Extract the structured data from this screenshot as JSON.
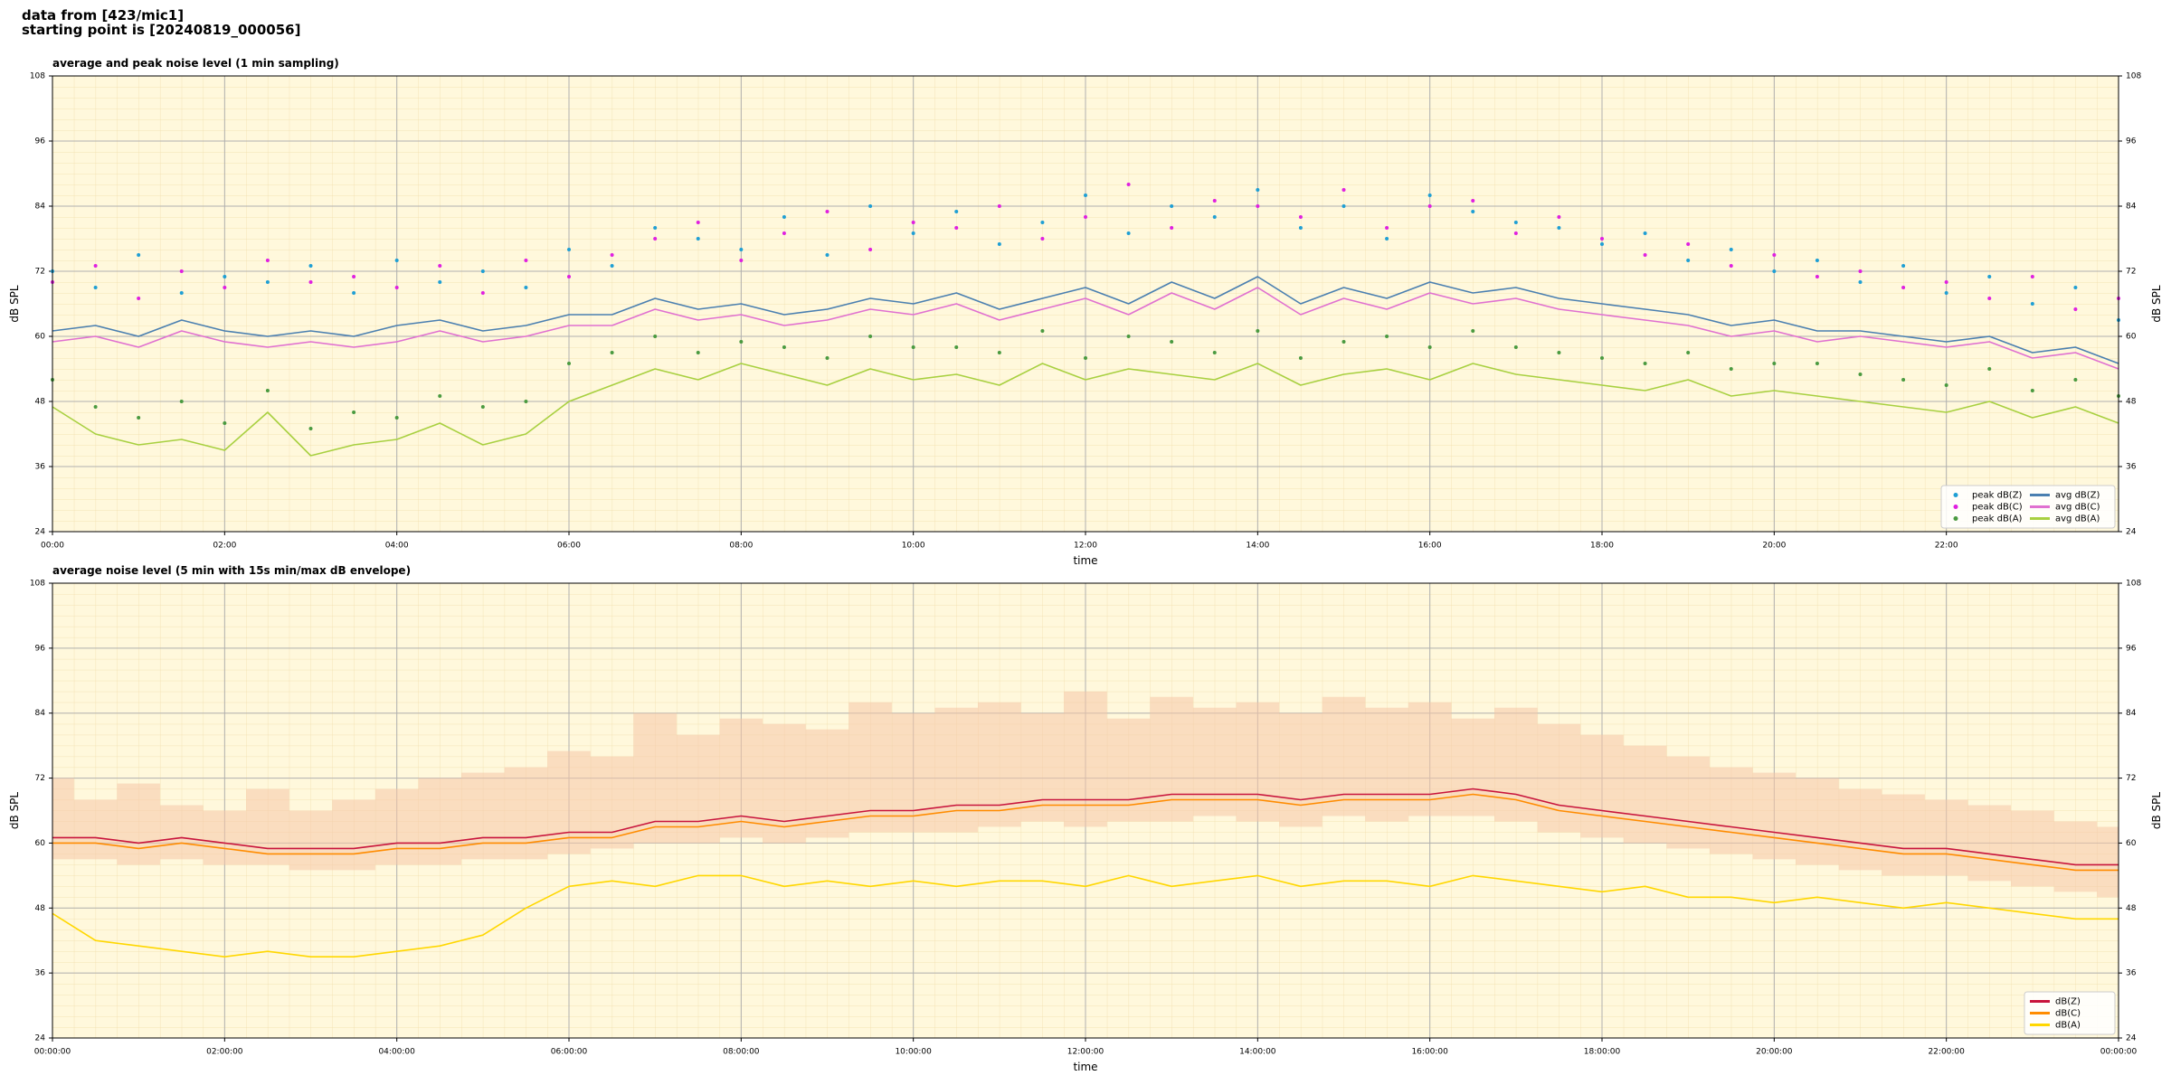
{
  "header": [
    "data from [423/mic1]",
    "starting point is [20240819_000056]"
  ],
  "chart_data": [
    {
      "type": "line",
      "title": "average and peak noise level (1 min sampling)",
      "x_label": "time",
      "y_label": "dB SPL",
      "background": "#fff8dc",
      "grid": true,
      "minor_grid": {
        "x": 0.25,
        "y": 2
      },
      "legend": "lower right",
      "legend_columns": 2,
      "xlim": [
        0,
        24
      ],
      "ylim": [
        24,
        108
      ],
      "xticks": [
        {
          "value": 0,
          "label": "00:00"
        },
        {
          "value": 2,
          "label": "02:00"
        },
        {
          "value": 4,
          "label": "04:00"
        },
        {
          "value": 6,
          "label": "06:00"
        },
        {
          "value": 8,
          "label": "08:00"
        },
        {
          "value": 10,
          "label": "10:00"
        },
        {
          "value": 12,
          "label": "12:00"
        },
        {
          "value": 14,
          "label": "14:00"
        },
        {
          "value": 16,
          "label": "16:00"
        },
        {
          "value": 18,
          "label": "18:00"
        },
        {
          "value": 20,
          "label": "20:00"
        },
        {
          "value": 22,
          "label": "22:00"
        }
      ],
      "yticks": [
        24,
        36,
        48,
        60,
        72,
        84,
        96,
        108
      ],
      "x": [
        0,
        0.5,
        1,
        1.5,
        2,
        2.5,
        3,
        3.5,
        4,
        4.5,
        5,
        5.5,
        6,
        6.5,
        7,
        7.5,
        8,
        8.5,
        9,
        9.5,
        10,
        10.5,
        11,
        11.5,
        12,
        12.5,
        13,
        13.5,
        14,
        14.5,
        15,
        15.5,
        16,
        16.5,
        17,
        17.5,
        18,
        18.5,
        19,
        19.5,
        20,
        20.5,
        21,
        21.5,
        22,
        22.5,
        23,
        23.5,
        24
      ],
      "series": [
        {
          "name": "peak dB(Z)",
          "type": "scatter",
          "color": "#1f9fd4",
          "values": [
            72,
            69,
            75,
            68,
            71,
            70,
            73,
            68,
            74,
            70,
            72,
            69,
            76,
            73,
            80,
            78,
            76,
            82,
            75,
            84,
            79,
            83,
            77,
            81,
            86,
            79,
            84,
            82,
            87,
            80,
            84,
            78,
            86,
            83,
            81,
            80,
            77,
            79,
            74,
            76,
            72,
            74,
            70,
            73,
            68,
            71,
            66,
            69,
            63
          ]
        },
        {
          "name": "peak dB(C)",
          "type": "scatter",
          "color": "#e020e0",
          "values": [
            70,
            73,
            67,
            72,
            69,
            74,
            70,
            71,
            69,
            73,
            68,
            74,
            71,
            75,
            78,
            81,
            74,
            79,
            83,
            76,
            81,
            80,
            84,
            78,
            82,
            88,
            80,
            85,
            84,
            82,
            87,
            80,
            84,
            85,
            79,
            82,
            78,
            75,
            77,
            73,
            75,
            71,
            72,
            69,
            70,
            67,
            71,
            65,
            67
          ]
        },
        {
          "name": "peak dB(A)",
          "type": "scatter",
          "color": "#4a9a40",
          "values": [
            52,
            47,
            45,
            48,
            44,
            50,
            43,
            46,
            45,
            49,
            47,
            48,
            55,
            57,
            60,
            57,
            59,
            58,
            56,
            60,
            58,
            58,
            57,
            61,
            56,
            60,
            59,
            57,
            61,
            56,
            59,
            60,
            58,
            61,
            58,
            57,
            56,
            55,
            57,
            54,
            55,
            55,
            53,
            52,
            51,
            54,
            50,
            52,
            49
          ]
        },
        {
          "name": "avg dB(Z)",
          "type": "line",
          "color": "#4a7fb0",
          "values": [
            61,
            62,
            60,
            63,
            61,
            60,
            61,
            60,
            62,
            63,
            61,
            62,
            64,
            64,
            67,
            65,
            66,
            64,
            65,
            67,
            66,
            68,
            65,
            67,
            69,
            66,
            70,
            67,
            71,
            66,
            69,
            67,
            70,
            68,
            69,
            67,
            66,
            65,
            64,
            62,
            63,
            61,
            61,
            60,
            59,
            60,
            57,
            58,
            55
          ]
        },
        {
          "name": "avg dB(C)",
          "type": "line",
          "color": "#e070d0",
          "values": [
            59,
            60,
            58,
            61,
            59,
            58,
            59,
            58,
            59,
            61,
            59,
            60,
            62,
            62,
            65,
            63,
            64,
            62,
            63,
            65,
            64,
            66,
            63,
            65,
            67,
            64,
            68,
            65,
            69,
            64,
            67,
            65,
            68,
            66,
            67,
            65,
            64,
            63,
            62,
            60,
            61,
            59,
            60,
            59,
            58,
            59,
            56,
            57,
            54
          ]
        },
        {
          "name": "avg dB(A)",
          "type": "line",
          "color": "#a8d040",
          "values": [
            47,
            42,
            40,
            41,
            39,
            46,
            38,
            40,
            41,
            44,
            40,
            42,
            48,
            51,
            54,
            52,
            55,
            53,
            51,
            54,
            52,
            53,
            51,
            55,
            52,
            54,
            53,
            52,
            55,
            51,
            53,
            54,
            52,
            55,
            53,
            52,
            51,
            50,
            52,
            49,
            50,
            49,
            48,
            47,
            46,
            48,
            45,
            47,
            44
          ]
        }
      ]
    },
    {
      "type": "line",
      "title": "average noise level (5 min with 15s min/max dB envelope)",
      "x_label": "time",
      "y_label": "dB SPL",
      "background": "#fff8dc",
      "grid": true,
      "minor_grid": {
        "x": 0.25,
        "y": 2
      },
      "legend": "lower right",
      "legend_columns": 1,
      "xlim": [
        0,
        24
      ],
      "ylim": [
        24,
        108
      ],
      "xticks": [
        {
          "value": 0,
          "label": "00:00:00"
        },
        {
          "value": 2,
          "label": "02:00:00"
        },
        {
          "value": 4,
          "label": "04:00:00"
        },
        {
          "value": 6,
          "label": "06:00:00"
        },
        {
          "value": 8,
          "label": "08:00:00"
        },
        {
          "value": 10,
          "label": "10:00:00"
        },
        {
          "value": 12,
          "label": "12:00:00"
        },
        {
          "value": 14,
          "label": "14:00:00"
        },
        {
          "value": 16,
          "label": "16:00:00"
        },
        {
          "value": 18,
          "label": "18:00:00"
        },
        {
          "value": 20,
          "label": "20:00:00"
        },
        {
          "value": 22,
          "label": "22:00:00"
        },
        {
          "value": 24,
          "label": "00:00:00"
        }
      ],
      "yticks": [
        24,
        36,
        48,
        60,
        72,
        84,
        96,
        108
      ],
      "x": [
        0,
        0.5,
        1,
        1.5,
        2,
        2.5,
        3,
        3.5,
        4,
        4.5,
        5,
        5.5,
        6,
        6.5,
        7,
        7.5,
        8,
        8.5,
        9,
        9.5,
        10,
        10.5,
        11,
        11.5,
        12,
        12.5,
        13,
        13.5,
        14,
        14.5,
        15,
        15.5,
        16,
        16.5,
        17,
        17.5,
        18,
        18.5,
        19,
        19.5,
        20,
        20.5,
        21,
        21.5,
        22,
        22.5,
        23,
        23.5,
        24
      ],
      "envelope": {
        "color": "#f5c6a8",
        "low": [
          57,
          57,
          56,
          57,
          56,
          56,
          55,
          55,
          56,
          56,
          57,
          57,
          58,
          59,
          60,
          60,
          61,
          60,
          61,
          62,
          62,
          62,
          63,
          64,
          63,
          64,
          64,
          65,
          64,
          63,
          65,
          64,
          65,
          65,
          64,
          62,
          61,
          60,
          59,
          58,
          57,
          56,
          55,
          54,
          54,
          53,
          52,
          51,
          50
        ],
        "high": [
          72,
          68,
          71,
          67,
          66,
          70,
          66,
          68,
          70,
          72,
          73,
          74,
          77,
          76,
          84,
          80,
          83,
          82,
          81,
          86,
          84,
          85,
          86,
          84,
          88,
          83,
          87,
          85,
          86,
          84,
          87,
          85,
          86,
          83,
          85,
          82,
          80,
          78,
          76,
          74,
          73,
          72,
          70,
          69,
          68,
          67,
          66,
          64,
          63
        ]
      },
      "series": [
        {
          "name": "dB(Z)",
          "type": "line",
          "color": "#c8143c",
          "values": [
            61,
            61,
            60,
            61,
            60,
            59,
            59,
            59,
            60,
            60,
            61,
            61,
            62,
            62,
            64,
            64,
            65,
            64,
            65,
            66,
            66,
            67,
            67,
            68,
            68,
            68,
            69,
            69,
            69,
            68,
            69,
            69,
            69,
            70,
            69,
            67,
            66,
            65,
            64,
            63,
            62,
            61,
            60,
            59,
            59,
            58,
            57,
            56,
            56
          ]
        },
        {
          "name": "dB(C)",
          "type": "line",
          "color": "#ff8c00",
          "values": [
            60,
            60,
            59,
            60,
            59,
            58,
            58,
            58,
            59,
            59,
            60,
            60,
            61,
            61,
            63,
            63,
            64,
            63,
            64,
            65,
            65,
            66,
            66,
            67,
            67,
            67,
            68,
            68,
            68,
            67,
            68,
            68,
            68,
            69,
            68,
            66,
            65,
            64,
            63,
            62,
            61,
            60,
            59,
            58,
            58,
            57,
            56,
            55,
            55
          ]
        },
        {
          "name": "dB(A)",
          "type": "line",
          "color": "#ffd700",
          "values": [
            47,
            42,
            41,
            40,
            39,
            40,
            39,
            39,
            40,
            41,
            43,
            48,
            52,
            53,
            52,
            54,
            54,
            52,
            53,
            52,
            53,
            52,
            53,
            53,
            52,
            54,
            52,
            53,
            54,
            52,
            53,
            53,
            52,
            54,
            53,
            52,
            51,
            52,
            50,
            50,
            49,
            50,
            49,
            48,
            49,
            48,
            47,
            46,
            46
          ]
        }
      ]
    }
  ]
}
